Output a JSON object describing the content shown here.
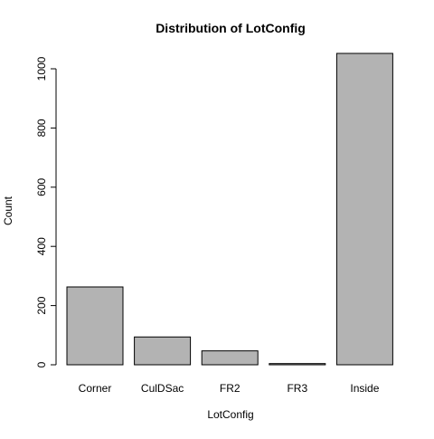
{
  "chart_data": {
    "type": "bar",
    "title": "Distribution of LotConfig",
    "xlabel": "LotConfig",
    "ylabel": "Count",
    "categories": [
      "Corner",
      "CulDSac",
      "FR2",
      "FR3",
      "Inside"
    ],
    "values": [
      263,
      94,
      47,
      4,
      1052
    ],
    "ylim": [
      0,
      1052
    ],
    "yticks": [
      0,
      200,
      400,
      600,
      800,
      1000
    ],
    "grid": false,
    "bar_color": "#b3b3b3",
    "bar_stroke": "#000000"
  }
}
